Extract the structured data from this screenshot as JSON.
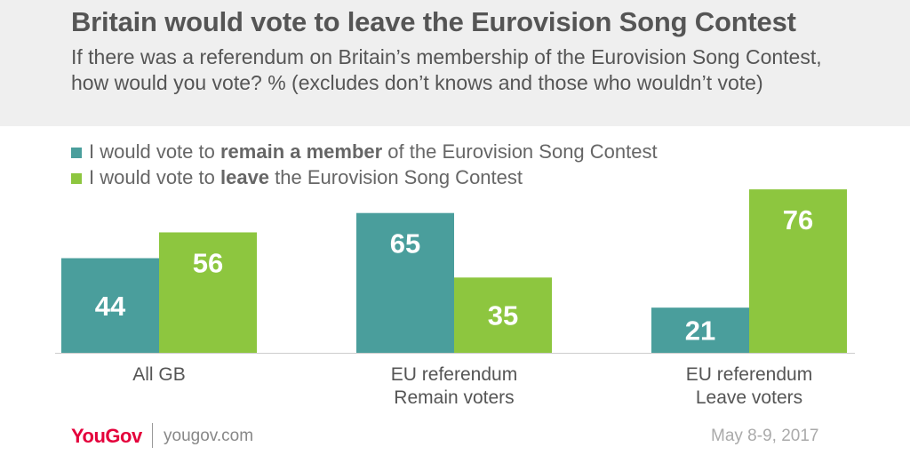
{
  "title": "Britain would vote to leave the Eurovision Song Contest",
  "subtitle": "If there was a referendum on Britain’s membership of the Eurovision Song Contest, how would you vote? % (excludes don’t knows and those who wouldn’t vote)",
  "legend": [
    {
      "pre": "I would vote to ",
      "bold": "remain a member",
      "post": " of the Eurovision Song Contest",
      "color": "#4a9e9c"
    },
    {
      "pre": "I would vote to ",
      "bold": "leave",
      "post": " the Eurovision Song Contest",
      "color": "#8dc63f"
    }
  ],
  "chart_data": {
    "type": "bar",
    "categories": [
      [
        "All GB"
      ],
      [
        "EU referendum",
        "Remain voters"
      ],
      [
        "EU referendum",
        "Leave voters"
      ]
    ],
    "series": [
      {
        "name": "I would vote to remain a member of the Eurovision Song Contest",
        "values": [
          44,
          65,
          21
        ],
        "color": "#4a9e9c"
      },
      {
        "name": "I would vote to leave the Eurovision Song Contest",
        "values": [
          56,
          35,
          76
        ],
        "color": "#8dc63f"
      }
    ],
    "unit": "%"
  },
  "footer": {
    "brand": "YouGov",
    "url": "yougov.com",
    "date": "May 8-9, 2017"
  }
}
